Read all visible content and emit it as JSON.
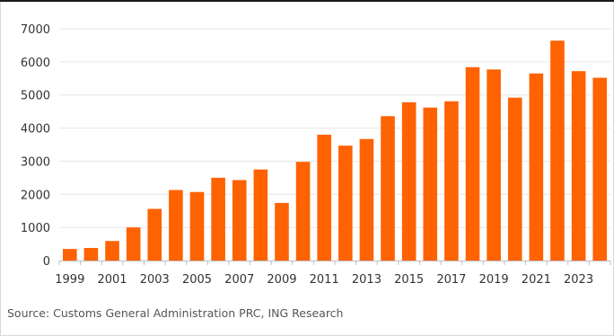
{
  "chart_data": {
    "type": "bar",
    "categories": [
      "1999",
      "2000",
      "2001",
      "2002",
      "2003",
      "2004",
      "2005",
      "2006",
      "2007",
      "2008",
      "2009",
      "2010",
      "2011",
      "2012",
      "2013",
      "2014",
      "2015",
      "2016",
      "2017",
      "2018",
      "2019",
      "2020",
      "2021",
      "2022",
      "2023",
      "2024"
    ],
    "values": [
      350,
      380,
      590,
      1000,
      1560,
      2130,
      2070,
      2500,
      2430,
      2750,
      1740,
      2980,
      3800,
      3470,
      3670,
      4360,
      4780,
      4620,
      4810,
      5840,
      5770,
      4920,
      5650,
      6640,
      5720,
      5520
    ],
    "x_tick_labels": [
      "1999",
      "2001",
      "2003",
      "2005",
      "2007",
      "2009",
      "2011",
      "2013",
      "2015",
      "2017",
      "2019",
      "2021",
      "2023"
    ],
    "y_ticks": [
      0,
      1000,
      2000,
      3000,
      4000,
      5000,
      6000,
      7000
    ],
    "ylim": [
      0,
      7000
    ],
    "title": "",
    "xlabel": "",
    "ylabel": "",
    "grid": true,
    "bar_color": "#FF6200",
    "source": "Source: Customs General Administration PRC, ING Research"
  }
}
